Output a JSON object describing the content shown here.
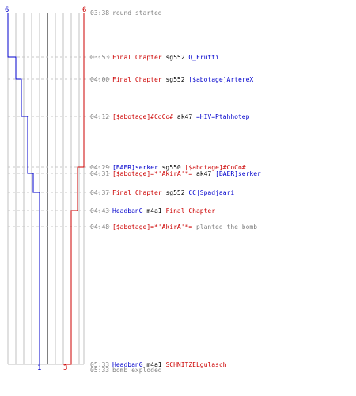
{
  "colors": {
    "team_a": "#0000cc",
    "team_b": "#cc0000",
    "grid": "#c0c0c0",
    "center": "#808080",
    "dash": "#c8c8c8",
    "text_grey": "#808080"
  },
  "teams": {
    "left_start": "6",
    "right_start": "6",
    "left_end": "1",
    "right_end": "3"
  },
  "events": [
    {
      "time": "03:38",
      "parts": [
        {
          "text": "round started",
          "color": "grey"
        }
      ]
    },
    {
      "time": "03:53",
      "parts": [
        {
          "text": "Final Chapter",
          "color": "red"
        },
        {
          "text": " sg552 ",
          "color": "black"
        },
        {
          "text": "Q_Frutti",
          "color": "blue"
        }
      ]
    },
    {
      "time": "04:00",
      "parts": [
        {
          "text": "Final Chapter",
          "color": "red"
        },
        {
          "text": " sg552 ",
          "color": "black"
        },
        {
          "text": "[$abotage]ArtereX",
          "color": "blue"
        }
      ]
    },
    {
      "time": "04:12",
      "parts": [
        {
          "text": "[$abotage]#CoCo#",
          "color": "red"
        },
        {
          "text": " ak47 ",
          "color": "black"
        },
        {
          "text": "=HIV=Ptahhotep",
          "color": "blue"
        }
      ]
    },
    {
      "time": "04:29",
      "parts": [
        {
          "text": "[BAER]serker",
          "color": "blue"
        },
        {
          "text": " sg550 ",
          "color": "black"
        },
        {
          "text": "[$abotage]#CoCo#",
          "color": "red"
        }
      ]
    },
    {
      "time": "04:31",
      "parts": [
        {
          "text": "[$abotage]=*'AkirA'*=",
          "color": "red"
        },
        {
          "text": " ak47 ",
          "color": "black"
        },
        {
          "text": "[BAER]serker",
          "color": "blue"
        }
      ]
    },
    {
      "time": "04:37",
      "parts": [
        {
          "text": "Final Chapter",
          "color": "red"
        },
        {
          "text": " sg552 ",
          "color": "black"
        },
        {
          "text": "CC|Spadjaari",
          "color": "blue"
        }
      ]
    },
    {
      "time": "04:43",
      "parts": [
        {
          "text": "HeadbanG",
          "color": "blue"
        },
        {
          "text": " m4a1 ",
          "color": "black"
        },
        {
          "text": "Final Chapter",
          "color": "red"
        }
      ]
    },
    {
      "time": "04:48",
      "parts": [
        {
          "text": "[$abotage]=*'AkirA'*=",
          "color": "red"
        },
        {
          "text": " planted the bomb",
          "color": "grey"
        }
      ]
    },
    {
      "time": "05:33",
      "parts": [
        {
          "text": "HeadbanG",
          "color": "blue"
        },
        {
          "text": " m4a1 ",
          "color": "black"
        },
        {
          "text": "SCHNITZELgulasch",
          "color": "red"
        }
      ]
    },
    {
      "time": "05:33",
      "parts": [
        {
          "text": "bomb exploded",
          "color": "grey"
        }
      ]
    }
  ]
}
